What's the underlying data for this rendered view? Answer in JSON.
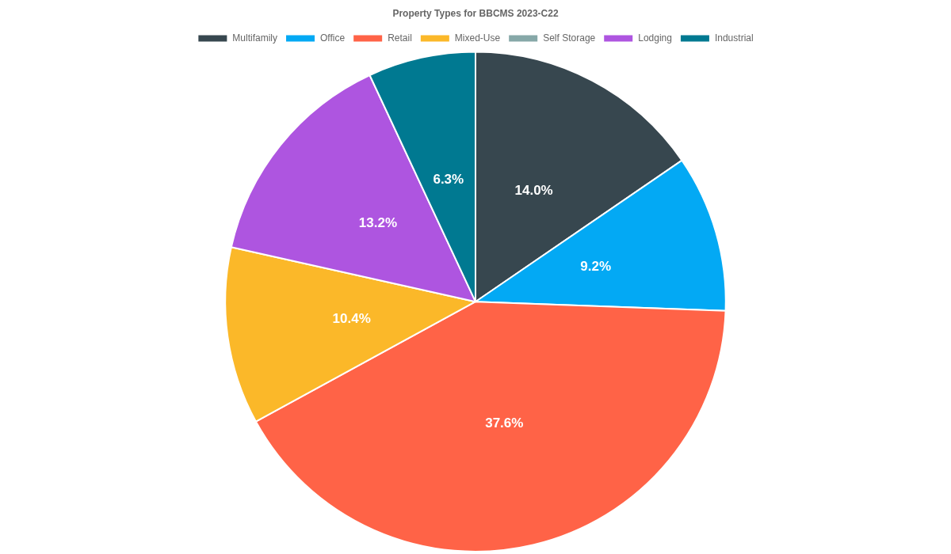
{
  "chart_data": {
    "type": "pie",
    "title": "Property Types for BBCMS 2023-C22",
    "categories": [
      "Multifamily",
      "Office",
      "Retail",
      "Mixed-Use",
      "Self Storage",
      "Lodging",
      "Industrial"
    ],
    "values": [
      14.0,
      9.2,
      37.6,
      10.4,
      0,
      13.2,
      6.3
    ],
    "value_labels": [
      "14.0%",
      "9.2%",
      "37.6%",
      "10.4%",
      null,
      "13.2%",
      "6.3%"
    ],
    "colors": [
      "#37474f",
      "#03a9f4",
      "#ff6347",
      "#fbb829",
      "#86a8a8",
      "#ae55e0",
      "#007991"
    ],
    "legend": "top",
    "data_labels": true
  }
}
